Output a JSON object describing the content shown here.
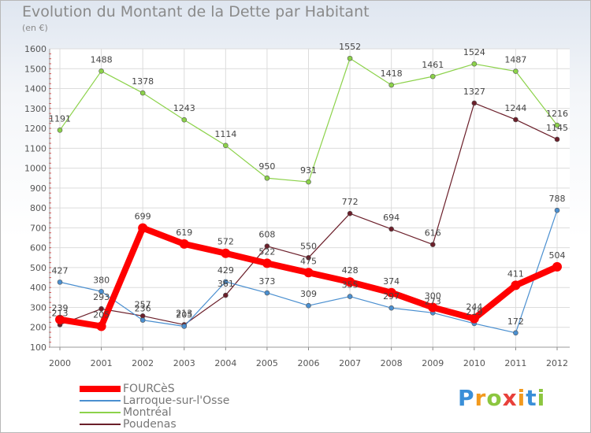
{
  "header": {
    "title": "Evolution du Montant de la Dette par Habitant",
    "subtitle": "(en €)"
  },
  "logo": {
    "text": "Proxiti",
    "colors": [
      "#3a8fd8",
      "#f29a1e",
      "#8cc63f",
      "#e8403a",
      "#f29a1e",
      "#3a8fd8",
      "#8cc63f"
    ]
  },
  "chart_data": {
    "type": "line",
    "title": "Evolution du Montant de la Dette par Habitant",
    "ylabel": "(en €)",
    "xlabel": "",
    "x": [
      "2000",
      "2001",
      "2002",
      "2003",
      "2004",
      "2005",
      "2006",
      "2007",
      "2008",
      "2009",
      "2010",
      "2011",
      "2012"
    ],
    "ylim": [
      100,
      1600
    ],
    "yticks": [
      100,
      200,
      300,
      400,
      500,
      600,
      700,
      800,
      900,
      1000,
      1100,
      1200,
      1300,
      1400,
      1500,
      1600
    ],
    "grid": true,
    "legend_position": "bottom-left",
    "series": [
      {
        "name": "FOURCèS",
        "color": "#ff0000",
        "values": [
          239,
          205,
          699,
          619,
          572,
          522,
          475,
          428,
          374,
          300,
          244,
          411,
          504
        ]
      },
      {
        "name": "Larroque-sur-l'Osse",
        "color": "#4a8fd0",
        "values": [
          427,
          380,
          236,
          205,
          429,
          373,
          309,
          355,
          297,
          273,
          219,
          172,
          788
        ]
      },
      {
        "name": "Montréal",
        "color": "#8cd24a",
        "values": [
          1191,
          1488,
          1378,
          1243,
          1114,
          950,
          931,
          1552,
          1418,
          1461,
          1524,
          1487,
          1216
        ]
      },
      {
        "name": "Poudenas",
        "color": "#6b1f2a",
        "values": [
          213,
          293,
          257,
          213,
          361,
          608,
          550,
          772,
          694,
          616,
          1327,
          1244,
          1145
        ]
      }
    ]
  }
}
